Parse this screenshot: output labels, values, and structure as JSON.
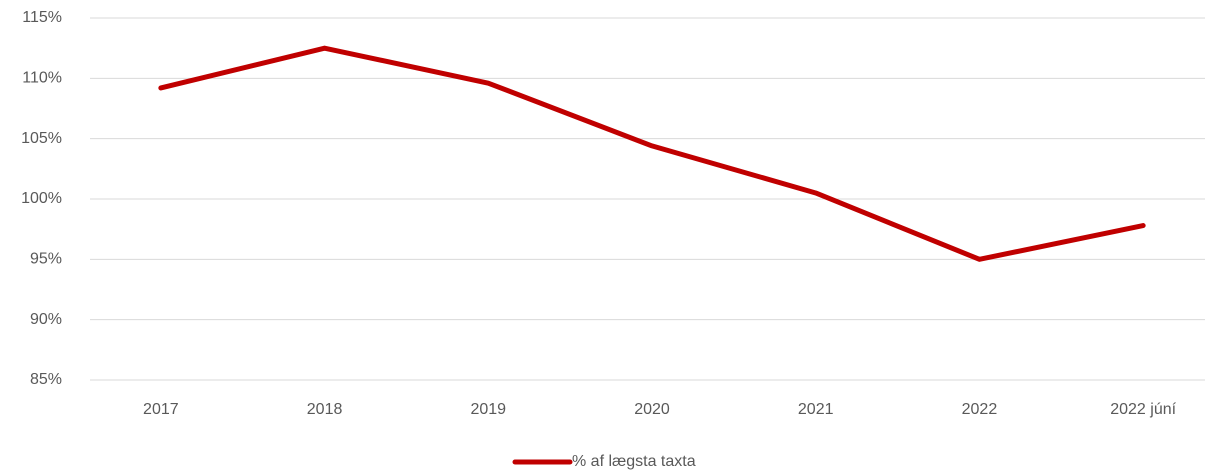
{
  "chart_data": {
    "type": "line",
    "categories": [
      "2017",
      "2018",
      "2019",
      "2020",
      "2021",
      "2022",
      "2022 júní"
    ],
    "series": [
      {
        "name": "% af lægsta taxta",
        "color": "#c00000",
        "values": [
          109.2,
          112.5,
          109.6,
          104.4,
          100.5,
          95.0,
          97.8
        ]
      }
    ],
    "ylim": [
      85,
      115
    ],
    "yticks": [
      {
        "value": 85,
        "label": "85%"
      },
      {
        "value": 90,
        "label": "90%"
      },
      {
        "value": 95,
        "label": "95%"
      },
      {
        "value": 100,
        "label": "100%"
      },
      {
        "value": 105,
        "label": "105%"
      },
      {
        "value": 110,
        "label": "110%"
      },
      {
        "value": 115,
        "label": "115%"
      }
    ],
    "grid": true,
    "legend": "bottom"
  }
}
